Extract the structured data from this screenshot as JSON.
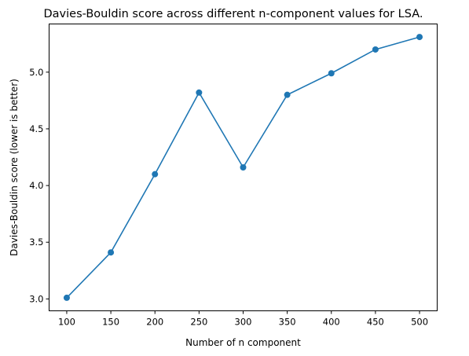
{
  "chart_data": {
    "type": "line",
    "title": "Davies-Bouldin score across different n-component values for LSA.",
    "xlabel": "Number of n component",
    "ylabel": "Davies-Bouldin score (lower is better)",
    "x": [
      100,
      150,
      200,
      250,
      300,
      350,
      400,
      450,
      500
    ],
    "series": [
      {
        "values": [
          3.01,
          3.41,
          4.1,
          4.82,
          4.16,
          4.8,
          4.99,
          5.2,
          5.31
        ],
        "color": "#1f77b4",
        "marker": "circle"
      }
    ],
    "xticks": [
      100,
      150,
      200,
      250,
      300,
      350,
      400,
      450,
      500
    ],
    "yticks": [
      3.0,
      3.5,
      4.0,
      4.5,
      5.0
    ],
    "ytick_labels": [
      "3.0",
      "3.5",
      "4.0",
      "4.5",
      "5.0"
    ],
    "xlim": [
      80,
      520
    ],
    "ylim": [
      2.895,
      5.425
    ],
    "grid": false
  }
}
